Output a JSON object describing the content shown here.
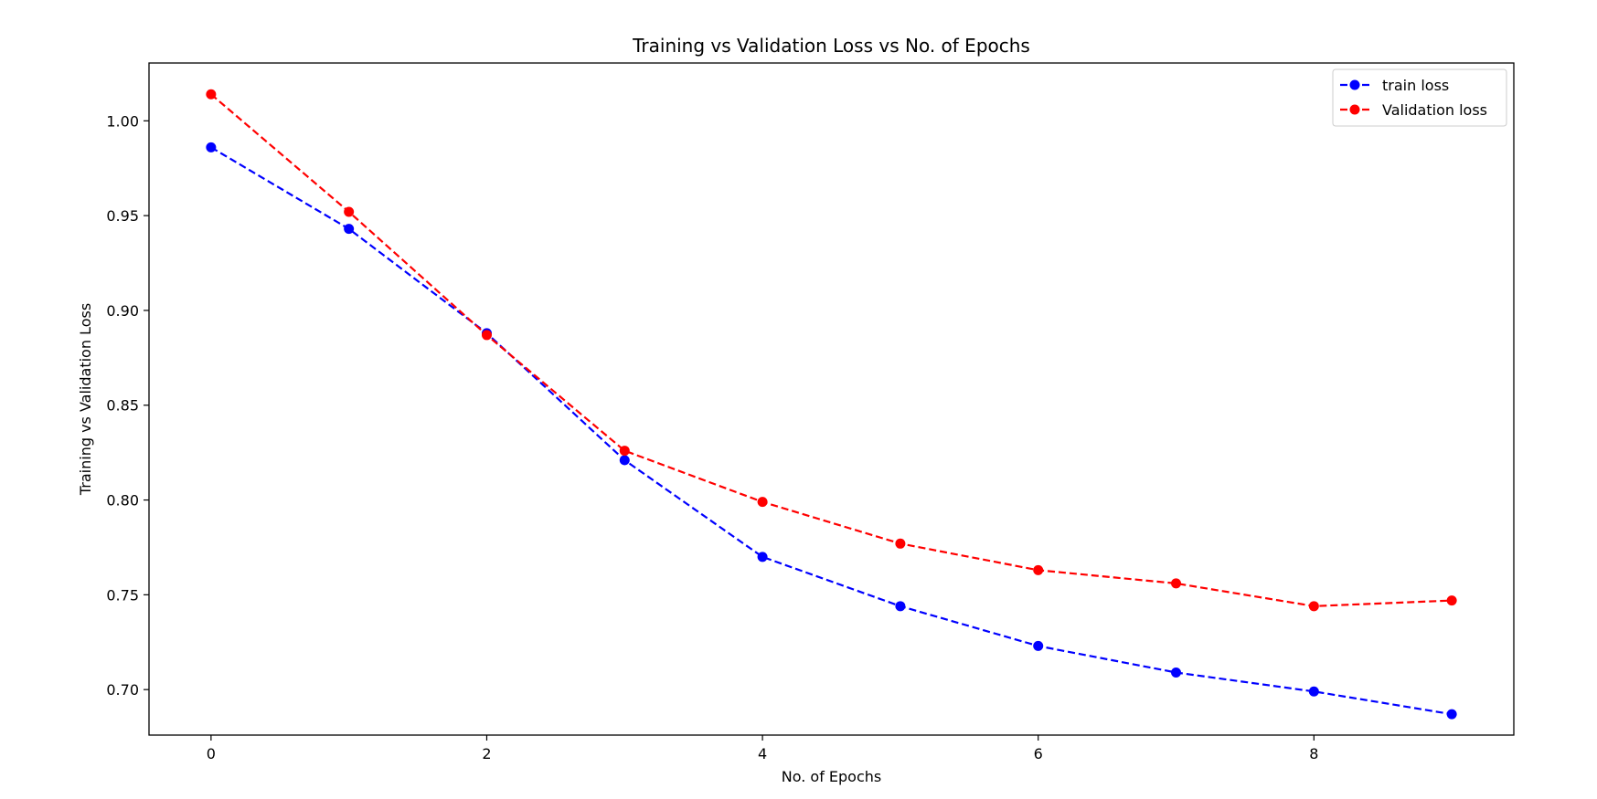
{
  "chart_data": {
    "type": "line",
    "title": "Training vs Validation Loss vs No. of Epochs",
    "xlabel": "No. of Epochs",
    "ylabel": "Training vs Validation Loss",
    "x": [
      0,
      1,
      2,
      3,
      4,
      5,
      6,
      7,
      8,
      9
    ],
    "xlim": [
      -0.45,
      9.45
    ],
    "ylim": [
      0.676,
      1.0305
    ],
    "xticks": [
      0,
      2,
      4,
      6,
      8
    ],
    "yticks": [
      0.7,
      0.75,
      0.8,
      0.85,
      0.9,
      0.95,
      1.0
    ],
    "xtick_labels": [
      "0",
      "2",
      "4",
      "6",
      "8"
    ],
    "ytick_labels": [
      "0.70",
      "0.75",
      "0.80",
      "0.85",
      "0.90",
      "0.95",
      "1.00"
    ],
    "grid": false,
    "legend_position": "top-right",
    "series": [
      {
        "name": "train loss",
        "color": "#0000ff",
        "line_style": "dashed",
        "marker": "circle",
        "values": [
          0.986,
          0.943,
          0.888,
          0.821,
          0.77,
          0.744,
          0.723,
          0.709,
          0.699,
          0.687
        ]
      },
      {
        "name": "Validation loss",
        "color": "#ff0000",
        "line_style": "dashed",
        "marker": "circle",
        "values": [
          1.014,
          0.952,
          0.887,
          0.826,
          0.799,
          0.777,
          0.763,
          0.756,
          0.744,
          0.747
        ]
      }
    ]
  }
}
